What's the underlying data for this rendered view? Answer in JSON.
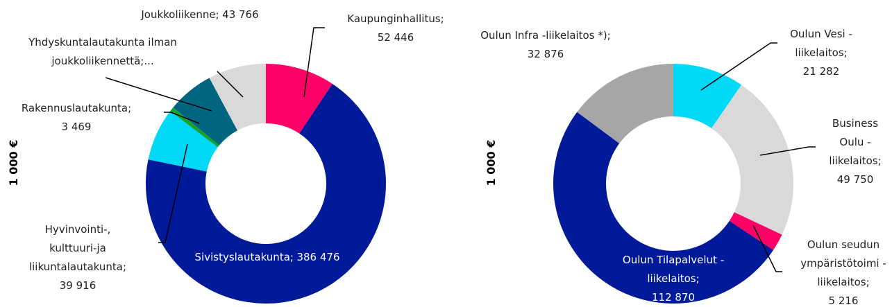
{
  "chart_data": [
    {
      "type": "pie",
      "hole": true,
      "ylabel": "1 000 €",
      "categories": [
        "Kaupunginhallitus;",
        "Sivistyslautakunta;",
        "Hyvinvointi-, kulttuuri-ja liikuntalautakunta;",
        "Rakennuslautakunta;",
        "Yhdyskuntalautakunta ilman joukkoliikennettä;...",
        "Joukkoliikenne;"
      ],
      "values": [
        52446,
        386476,
        39916,
        3469,
        35000,
        43766
      ],
      "value_labels": [
        "52 446",
        "386 476",
        "39 916",
        "3 469",
        null,
        "43 766"
      ],
      "colors": [
        "#ff0066",
        "#001a99",
        "#00d8f7",
        "#1aa12b",
        "#006680",
        "#d9d9d9"
      ]
    },
    {
      "type": "pie",
      "hole": true,
      "ylabel": "1 000 €",
      "categories": [
        "Oulun Vesi - liikelaitos;",
        "Business Oulu - liikelaitos;",
        "Oulun seudun ympäristötoimi -liikelaitos;",
        "Oulun Tilapalvelut - liikelaitos;",
        "Oulun Infra -liikelaitos *);"
      ],
      "values": [
        21282,
        49750,
        5216,
        112870,
        32876
      ],
      "value_labels": [
        "21 282",
        "49 750",
        "5 216",
        "112 870",
        "32 876"
      ],
      "colors": [
        "#00d8f7",
        "#d9d9d9",
        "#ff0066",
        "#001a99",
        "#a6a6a6"
      ]
    }
  ]
}
